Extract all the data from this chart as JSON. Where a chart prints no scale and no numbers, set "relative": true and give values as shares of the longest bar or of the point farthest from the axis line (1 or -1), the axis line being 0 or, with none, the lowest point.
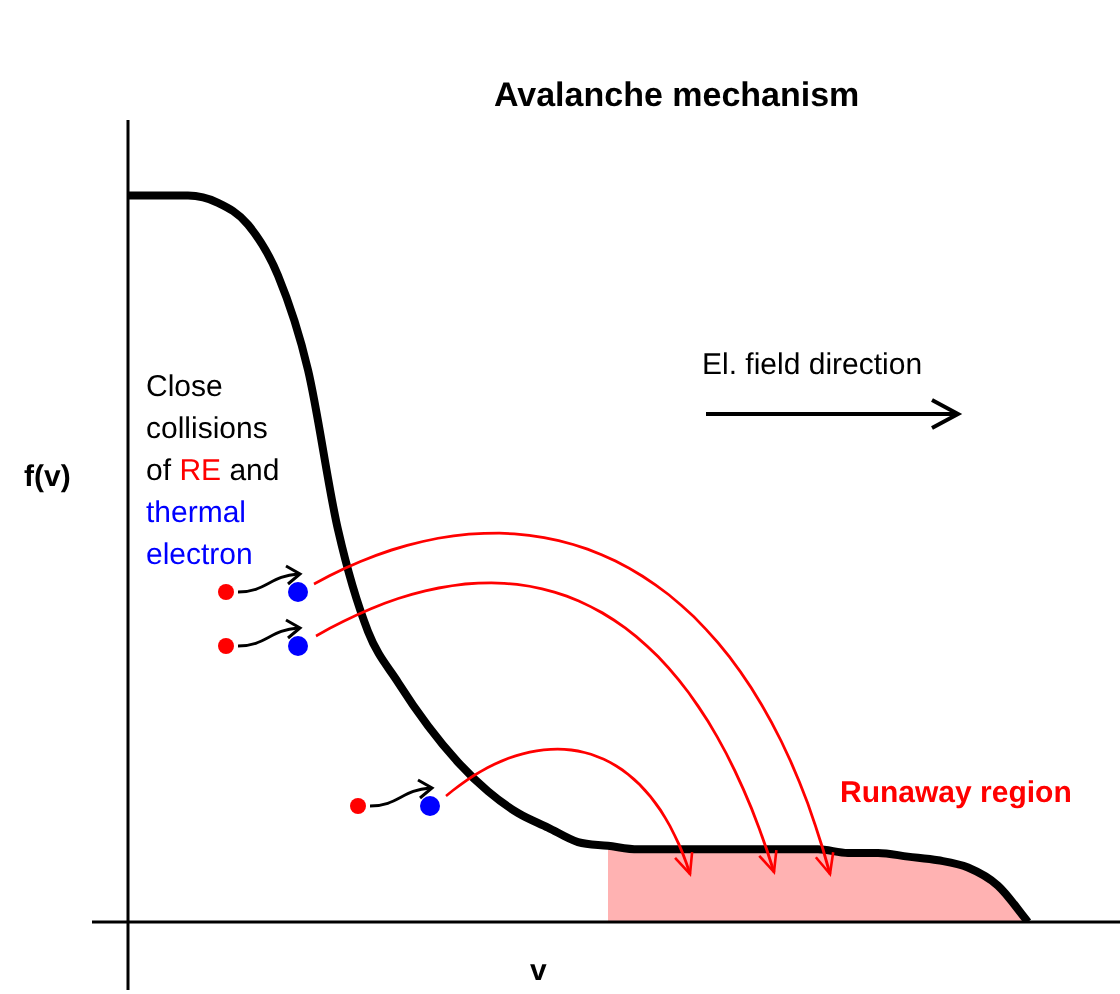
{
  "chart_data": {
    "type": "line",
    "title": "Avalanche mechanism",
    "xlabel": "v",
    "ylabel": "f(v)",
    "relative": true,
    "legend": false,
    "marker": "none",
    "line_style": "solid",
    "categories": [
      null,
      null,
      null,
      null,
      null,
      null,
      null,
      null,
      null,
      null,
      null,
      null,
      null,
      null,
      null,
      null,
      null,
      null,
      null,
      null,
      null,
      null,
      null,
      null,
      null,
      null,
      null,
      null,
      null,
      null,
      null
    ],
    "series": [
      {
        "color": "#000000",
        "values": [
          1.0,
          1.0,
          1.0,
          0.99,
          0.96,
          0.89,
          0.76,
          0.54,
          0.4,
          0.33,
          0.27,
          0.22,
          0.18,
          0.15,
          0.13,
          0.11,
          0.105,
          0.1,
          0.1,
          0.1,
          0.1,
          0.1,
          0.1,
          0.1,
          0.095,
          0.095,
          0.09,
          0.085,
          0.075,
          0.05,
          0
        ]
      },
      {
        "type": "area",
        "name": "Runaway region",
        "color": "#ff0000",
        "values": [
          null,
          null,
          null,
          null,
          null,
          null,
          null,
          null,
          null,
          null,
          null,
          null,
          null,
          null,
          null,
          null,
          0.105,
          0.1,
          0.1,
          0.1,
          0.1,
          0.1,
          0.1,
          0.1,
          0.095,
          0.095,
          0.09,
          0.085,
          0.075,
          0.05,
          0
        ]
      }
    ],
    "annotations": [
      "El. field direction",
      "Close collisions",
      "of",
      "RE",
      "and",
      "thermal",
      "electron"
    ]
  }
}
